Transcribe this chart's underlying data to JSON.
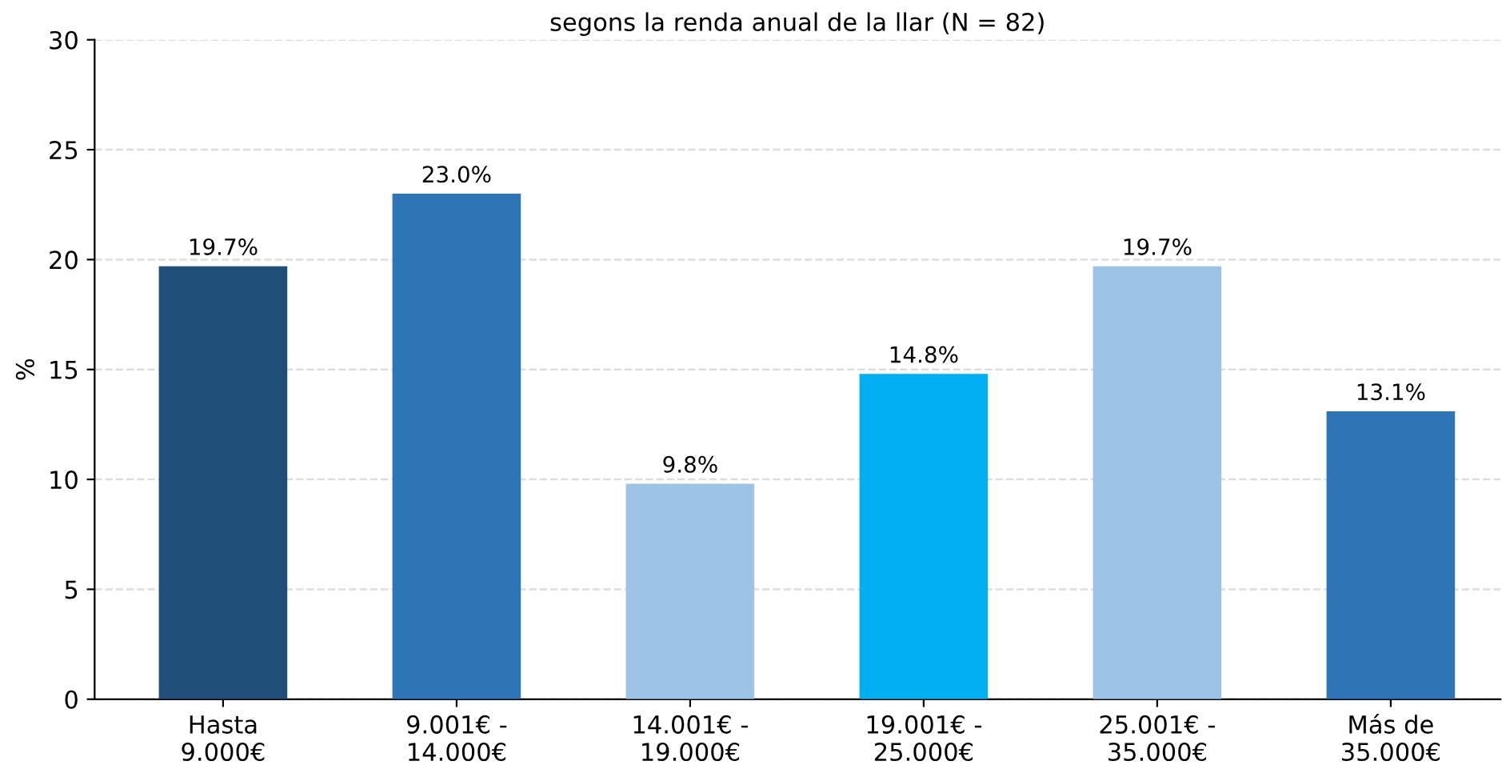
{
  "chart_data": {
    "type": "bar",
    "title": "segons la renda anual de la llar (N = 82)",
    "ylabel": "%",
    "categories": [
      "Hasta\n9.000€",
      "9.001€ -\n14.000€",
      "14.001€ -\n19.000€",
      "19.001€ -\n25.000€",
      "25.001€ -\n35.000€",
      "Más de\n35.000€"
    ],
    "values": [
      19.7,
      23.0,
      9.8,
      14.8,
      19.7,
      13.1
    ],
    "colors": [
      "#1f4e79",
      "#2e75b6",
      "#9dc3e6",
      "#00b0f0",
      "#9dc3e6",
      "#2e75b6"
    ],
    "value_labels": [
      "19.7%",
      "23.0%",
      "9.8%",
      "14.8%",
      "19.7%",
      "13.1%"
    ],
    "ylim": [
      0,
      30
    ],
    "yticks": [
      0,
      5,
      10,
      15,
      20,
      25,
      30
    ],
    "grid": "y",
    "legend": false
  }
}
